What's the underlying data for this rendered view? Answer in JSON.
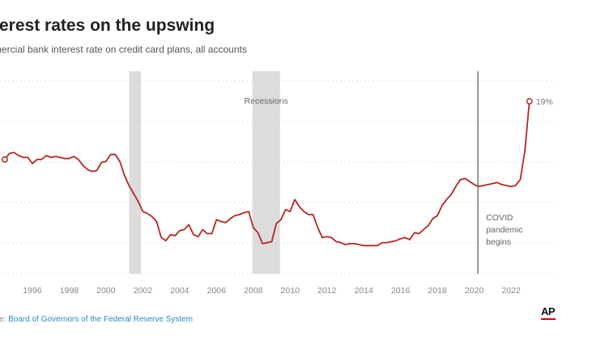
{
  "title": "terest rates on the upswing",
  "subtitle": "mercial bank interest rate on credit card plans, all accounts",
  "source": {
    "prefix": "ce: ",
    "link": "Board of Governors of the Federal Reserve System"
  },
  "logo": "AP",
  "colors": {
    "line": "#b5271f",
    "recession": "#dcdcdc",
    "grid": "#c8c8c8"
  },
  "chart_data": {
    "type": "line",
    "title": "terest rates on the upswing",
    "subtitle": "mercial bank interest rate on credit card plans, all accounts",
    "xlabel": "",
    "ylabel": "",
    "xlim": [
      1994.3,
      2023.5
    ],
    "ylim": [
      10.4,
      20.5
    ],
    "x_ticks": [
      "1996",
      "1998",
      "2000",
      "2002",
      "2004",
      "2006",
      "2008",
      "2010",
      "2012",
      "2014",
      "2016",
      "2018",
      "2020",
      "2022"
    ],
    "grid": "horizontal dotted",
    "recessions": [
      {
        "label": "Recessions",
        "start": 2001.25,
        "end": 2001.9
      },
      {
        "label": "Recessions",
        "start": 2007.95,
        "end": 2009.45
      }
    ],
    "events": [
      {
        "x": 2020.2,
        "label": [
          "COVID",
          "pandemic",
          "begins"
        ]
      }
    ],
    "end_label": "19%",
    "series": [
      {
        "values_x": [
          1994.5,
          1994.75,
          1995.0,
          1995.25,
          1995.5,
          1995.75,
          1996.0,
          1996.25,
          1996.5,
          1996.75,
          1997.0,
          1997.25,
          1997.5,
          1997.75,
          1998.0,
          1998.25,
          1998.5,
          1998.75,
          1999.0,
          1999.25,
          1999.5,
          1999.75,
          2000.0,
          2000.25,
          2000.5,
          2000.75,
          2001.0,
          2001.25,
          2001.5,
          2001.75,
          2002.0,
          2002.25,
          2002.5,
          2002.75,
          2003.0,
          2003.25,
          2003.5,
          2003.75,
          2004.0,
          2004.25,
          2004.5,
          2004.75,
          2005.0,
          2005.25,
          2005.5,
          2005.75,
          2006.0,
          2006.25,
          2006.5,
          2006.75,
          2007.0,
          2007.25,
          2007.5,
          2007.75,
          2008.0,
          2008.25,
          2008.5,
          2008.75,
          2009.0,
          2009.25,
          2009.5,
          2009.75,
          2010.0,
          2010.25,
          2010.5,
          2010.75,
          2011.0,
          2011.25,
          2011.5,
          2011.75,
          2012.0,
          2012.25,
          2012.5,
          2012.75,
          2013.0,
          2013.25,
          2013.5,
          2013.75,
          2014.0,
          2014.25,
          2014.5,
          2014.75,
          2015.0,
          2015.25,
          2015.5,
          2015.75,
          2016.0,
          2016.25,
          2016.5,
          2016.75,
          2017.0,
          2017.25,
          2017.5,
          2017.75,
          2018.0,
          2018.25,
          2018.5,
          2018.75,
          2019.0,
          2019.25,
          2019.5,
          2019.75,
          2020.0,
          2020.25,
          2020.5,
          2020.75,
          2021.0,
          2021.25,
          2021.5,
          2021.75,
          2022.0,
          2022.25,
          2022.5,
          2022.75,
          2023.0
        ],
        "values": [
          16.1,
          16.4,
          16.45,
          16.3,
          16.2,
          16.2,
          15.9,
          16.1,
          16.1,
          16.3,
          16.2,
          16.25,
          16.2,
          16.15,
          16.15,
          16.25,
          16.1,
          15.8,
          15.6,
          15.5,
          15.55,
          15.95,
          16.0,
          16.35,
          16.35,
          16.0,
          15.3,
          14.8,
          14.4,
          14.0,
          13.5,
          13.4,
          13.25,
          13.0,
          12.2,
          12.05,
          12.35,
          12.3,
          12.55,
          12.6,
          12.85,
          12.35,
          12.25,
          12.6,
          12.4,
          12.4,
          13.1,
          13.0,
          12.95,
          13.15,
          13.3,
          13.35,
          13.45,
          13.5,
          12.7,
          12.45,
          11.9,
          11.95,
          12.0,
          12.9,
          13.1,
          13.6,
          13.5,
          14.1,
          13.75,
          13.5,
          13.35,
          13.35,
          12.7,
          12.2,
          12.25,
          12.2,
          12.0,
          11.95,
          11.85,
          11.9,
          11.9,
          11.85,
          11.8,
          11.8,
          11.8,
          11.8,
          11.95,
          11.95,
          12.0,
          12.05,
          12.15,
          12.2,
          12.1,
          12.45,
          12.4,
          12.6,
          12.8,
          13.15,
          13.3,
          13.8,
          14.1,
          14.35,
          14.75,
          15.1,
          15.15,
          15.0,
          14.85,
          14.75,
          14.8,
          14.85,
          14.9,
          14.95,
          14.85,
          14.8,
          14.75,
          14.8,
          15.1,
          16.5,
          19.0
        ]
      }
    ]
  }
}
